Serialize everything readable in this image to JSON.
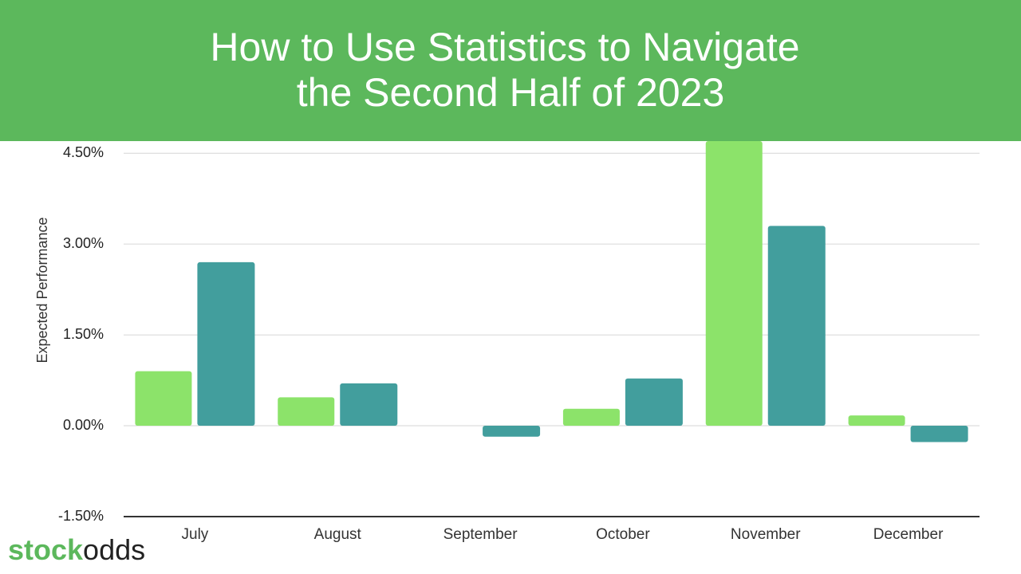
{
  "banner": {
    "title_line1": "How to Use Statistics to Navigate",
    "title_line2": "the Second Half of 2023"
  },
  "logo": {
    "part1": "stock",
    "part2": "odds"
  },
  "chart_data": {
    "type": "bar",
    "y_label": "Expected Performance",
    "categories": [
      "July",
      "August",
      "September",
      "October",
      "November",
      "December"
    ],
    "series": [
      {
        "color": "#8ce36a",
        "values": [
          0.9,
          0.47,
          0,
          0.28,
          4.7,
          0.17
        ]
      },
      {
        "color": "#429e9d",
        "values": [
          2.7,
          0.7,
          -0.18,
          0.78,
          3.3,
          -0.27
        ]
      }
    ],
    "ylim": [
      -1.5,
      4.7
    ],
    "yticks": [
      {
        "value": -1.5,
        "label": "-1.50%"
      },
      {
        "value": 0,
        "label": "0.00%"
      },
      {
        "value": 1.5,
        "label": "1.50%"
      },
      {
        "value": 3,
        "label": "3.00%"
      },
      {
        "value": 4.5,
        "label": "4.50%"
      }
    ],
    "grid": true
  }
}
